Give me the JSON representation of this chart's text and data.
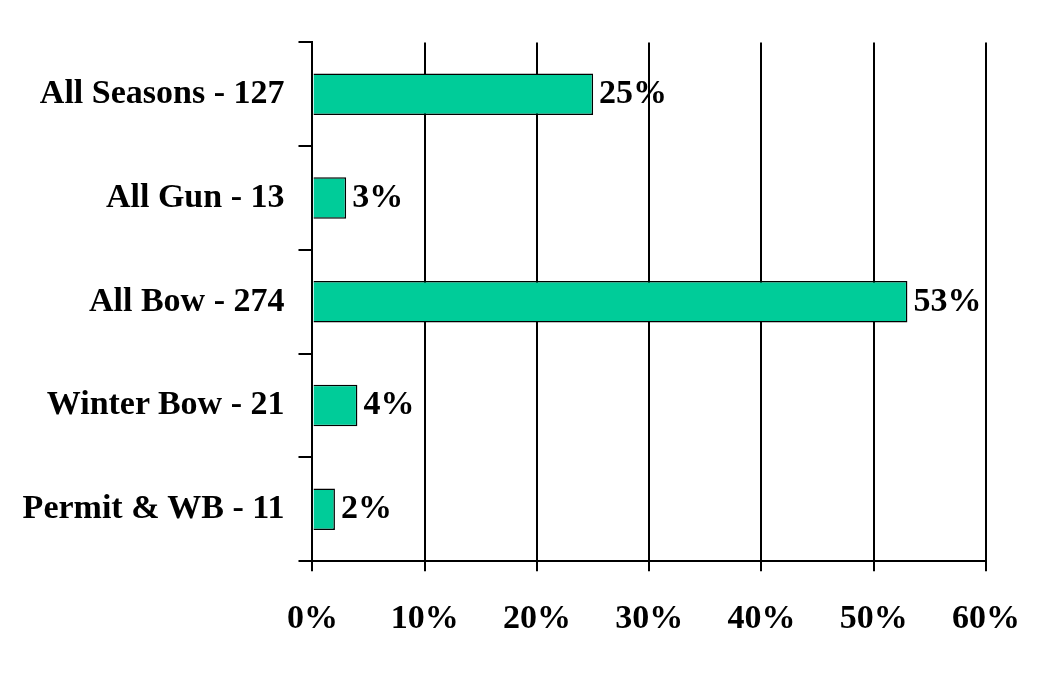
{
  "chart_data": {
    "type": "bar",
    "orientation": "horizontal",
    "categories": [
      "All Seasons - 127",
      "All Gun - 13",
      "All Bow - 274",
      "Winter Bow - 21",
      "Permit & WB - 11"
    ],
    "values": [
      25,
      3,
      53,
      4,
      2
    ],
    "value_labels": [
      "25%",
      "3%",
      "53%",
      "4%",
      "2%"
    ],
    "color": "#00cc99",
    "xlim": [
      0,
      60
    ],
    "xticks": [
      {
        "value": 0,
        "label": "0%"
      },
      {
        "value": 10,
        "label": "10%"
      },
      {
        "value": 20,
        "label": "20%"
      },
      {
        "value": 30,
        "label": "30%"
      },
      {
        "value": 40,
        "label": "40%"
      },
      {
        "value": 50,
        "label": "50%"
      },
      {
        "value": 60,
        "label": "60%"
      }
    ],
    "grid": "x",
    "legend": false
  }
}
